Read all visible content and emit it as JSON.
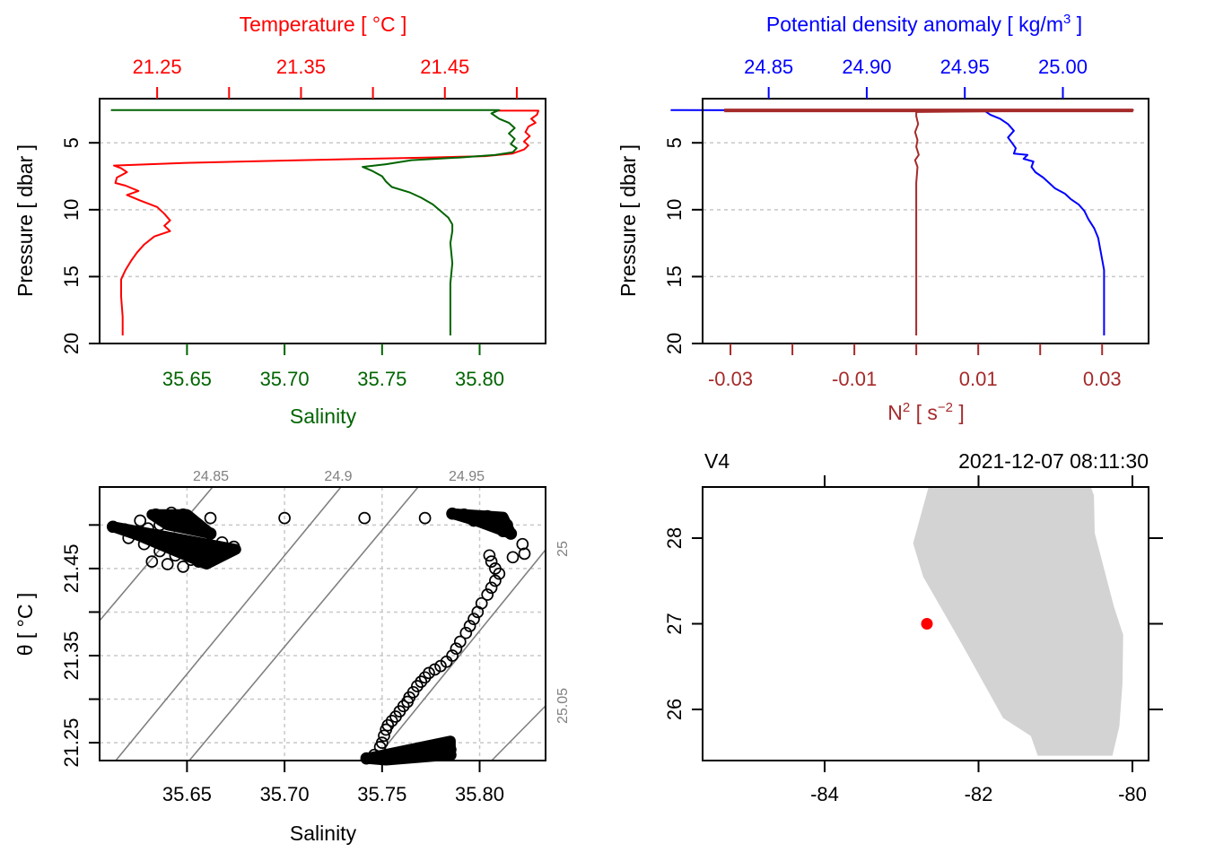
{
  "colors": {
    "temperature": "#ff0000",
    "salinity": "#006400",
    "density": "#0000ff",
    "n2": "#a52a2a",
    "grid": "#c8c8c8",
    "isopycnal": "#808080",
    "land": "#d3d3d3",
    "station": "#ff0000",
    "axis": "#000000"
  },
  "chart_data": [
    {
      "id": "temperature-salinity-profile",
      "type": "line",
      "ylabel": "Pressure [ dbar ]",
      "ylim": [
        20.0,
        1.7
      ],
      "y_ticks": [
        5,
        10,
        15,
        20
      ],
      "y_tick_labels": [
        "5",
        "10",
        "15",
        "20"
      ],
      "grid": "horizontal dotted at pressure ticks",
      "axes": {
        "top": {
          "title": "Temperature [ °C ]",
          "color": "#ff0000",
          "range": [
            21.21,
            21.52
          ],
          "ticks": [
            21.25,
            21.3,
            21.35,
            21.4,
            21.45,
            21.5
          ],
          "tick_labels": [
            "21.25",
            "",
            "21.35",
            "",
            "21.45",
            ""
          ]
        },
        "bottom": {
          "title": "Salinity",
          "color": "#006400",
          "range": [
            35.6052,
            35.8338
          ],
          "ticks": [
            35.65,
            35.7,
            35.75,
            35.8
          ],
          "tick_labels": [
            "35.65",
            "35.70",
            "35.75",
            "35.80"
          ]
        }
      },
      "series": [
        {
          "name": "Temperature",
          "axis": "top",
          "color": "#ff0000",
          "points": [
            [
              21.484,
              2.6
            ],
            [
              21.515,
              2.6
            ],
            [
              21.514,
              2.9
            ],
            [
              21.51,
              3.2
            ],
            [
              21.513,
              3.5
            ],
            [
              21.508,
              3.8
            ],
            [
              21.506,
              4.2
            ],
            [
              21.509,
              4.5
            ],
            [
              21.505,
              4.9
            ],
            [
              21.508,
              5.2
            ],
            [
              21.505,
              5.5
            ],
            [
              21.497,
              5.8
            ],
            [
              21.478,
              6.0
            ],
            [
              21.44,
              6.1
            ],
            [
              21.35,
              6.3
            ],
            [
              21.27,
              6.5
            ],
            [
              21.245,
              6.6
            ],
            [
              21.22,
              6.7
            ],
            [
              21.225,
              6.9
            ],
            [
              21.229,
              7.2
            ],
            [
              21.222,
              7.6
            ],
            [
              21.221,
              8.0
            ],
            [
              21.228,
              8.2
            ],
            [
              21.237,
              8.6
            ],
            [
              21.229,
              8.9
            ],
            [
              21.238,
              9.3
            ],
            [
              21.25,
              9.8
            ],
            [
              21.255,
              10.3
            ],
            [
              21.259,
              10.8
            ],
            [
              21.255,
              11.2
            ],
            [
              21.259,
              11.6
            ],
            [
              21.248,
              12.0
            ],
            [
              21.241,
              12.6
            ],
            [
              21.236,
              13.2
            ],
            [
              21.232,
              13.8
            ],
            [
              21.228,
              14.5
            ],
            [
              21.225,
              15.2
            ],
            [
              21.225,
              16.5
            ],
            [
              21.226,
              18.0
            ],
            [
              21.226,
              19.4
            ]
          ]
        },
        {
          "name": "Salinity",
          "axis": "bottom",
          "color": "#006400",
          "points": [
            [
              35.611,
              2.55
            ],
            [
              35.81,
              2.55
            ],
            [
              35.806,
              2.8
            ],
            [
              35.81,
              3.2
            ],
            [
              35.815,
              3.5
            ],
            [
              35.818,
              3.9
            ],
            [
              35.815,
              4.3
            ],
            [
              35.818,
              4.7
            ],
            [
              35.816,
              5.1
            ],
            [
              35.819,
              5.4
            ],
            [
              35.817,
              5.7
            ],
            [
              35.808,
              5.9
            ],
            [
              35.79,
              6.1
            ],
            [
              35.765,
              6.3
            ],
            [
              35.752,
              6.6
            ],
            [
              35.74,
              6.8
            ],
            [
              35.745,
              7.1
            ],
            [
              35.75,
              7.5
            ],
            [
              35.752,
              7.9
            ],
            [
              35.755,
              8.3
            ],
            [
              35.764,
              8.7
            ],
            [
              35.77,
              9.1
            ],
            [
              35.776,
              9.6
            ],
            [
              35.78,
              10.1
            ],
            [
              35.784,
              10.6
            ],
            [
              35.786,
              11.1
            ],
            [
              35.786,
              11.6
            ],
            [
              35.785,
              12.5
            ],
            [
              35.786,
              14.0
            ],
            [
              35.785,
              15.5
            ],
            [
              35.785,
              17.0
            ],
            [
              35.785,
              18.5
            ],
            [
              35.785,
              19.4
            ]
          ]
        }
      ]
    },
    {
      "id": "density-n2-profile",
      "type": "line",
      "ylabel": "Pressure [ dbar ]",
      "ylim": [
        20.0,
        1.7
      ],
      "y_ticks": [
        5,
        10,
        15,
        20
      ],
      "y_tick_labels": [
        "5",
        "10",
        "15",
        "20"
      ],
      "grid": "horizontal dotted at pressure ticks",
      "axes": {
        "top": {
          "title": "Potential density anomaly [ kg/m³ ]",
          "color": "#0000ff",
          "range": [
            24.7661,
            24.9939
          ],
          "display_range_note": "",
          "ticks": [
            24.85,
            24.9,
            24.95,
            25.0
          ],
          "tick_labels": [
            "24.85",
            "24.90",
            "24.95",
            "25.00"
          ]
        },
        "bottom": {
          "title": "N² [ s⁻² ]",
          "color": "#a52a2a",
          "range": [
            -0.0345,
            0.0375
          ],
          "ticks": [
            -0.03,
            -0.02,
            -0.01,
            0.0,
            0.01,
            0.02,
            0.03
          ],
          "tick_labels": [
            "-0.03",
            "",
            "-0.01",
            "",
            "0.01",
            "",
            "0.03"
          ]
        }
      },
      "series": [
        {
          "name": "Potential density anomaly",
          "axis": "top",
          "color": "#0000ff",
          "points": [
            [
              24.8,
              2.55
            ],
            [
              24.96,
              2.6
            ],
            [
              24.963,
              2.9
            ],
            [
              24.968,
              3.2
            ],
            [
              24.972,
              3.6
            ],
            [
              24.975,
              4.1
            ],
            [
              24.972,
              4.6
            ],
            [
              24.974,
              5.0
            ],
            [
              24.976,
              5.4
            ],
            [
              24.975,
              5.8
            ],
            [
              24.982,
              5.9
            ],
            [
              24.98,
              6.2
            ],
            [
              24.985,
              6.4
            ],
            [
              24.984,
              6.8
            ],
            [
              24.986,
              7.2
            ],
            [
              24.99,
              7.6
            ],
            [
              24.993,
              8.0
            ],
            [
              24.996,
              8.4
            ],
            [
              25.001,
              8.8
            ],
            [
              25.004,
              9.2
            ],
            [
              25.008,
              9.6
            ],
            [
              25.011,
              10.1
            ],
            [
              25.013,
              10.7
            ],
            [
              25.016,
              11.4
            ],
            [
              25.018,
              12.1
            ],
            [
              25.019,
              12.9
            ],
            [
              25.02,
              13.7
            ],
            [
              25.021,
              14.5
            ],
            [
              25.021,
              15.5
            ],
            [
              25.021,
              17.0
            ],
            [
              25.021,
              18.5
            ],
            [
              25.021,
              19.4
            ]
          ]
        },
        {
          "name": "N2",
          "axis": "bottom",
          "color": "#a52a2a",
          "points": [
            [
              -0.031,
              2.55
            ],
            [
              0.035,
              2.55
            ],
            [
              0.0,
              2.7
            ],
            [
              0.0,
              3.0
            ],
            [
              0.0003,
              3.6
            ],
            [
              -0.0002,
              4.2
            ],
            [
              0.0002,
              4.8
            ],
            [
              0.0,
              5.3
            ],
            [
              0.0004,
              5.9
            ],
            [
              -0.0002,
              6.3
            ],
            [
              0.0002,
              6.8
            ],
            [
              0.0,
              8.0
            ],
            [
              0.0,
              10.0
            ],
            [
              0.0,
              12.0
            ],
            [
              0.0,
              14.0
            ],
            [
              0.0,
              16.0
            ],
            [
              0.0,
              18.0
            ],
            [
              0.0,
              19.4
            ]
          ]
        }
      ]
    },
    {
      "id": "ts-diagram",
      "type": "scatter",
      "xlabel": "Salinity",
      "ylabel": "θ [ °C ]",
      "xlim": [
        35.6052,
        35.8338
      ],
      "ylim": [
        21.2295,
        21.5436
      ],
      "x_ticks": [
        35.65,
        35.7,
        35.75,
        35.8
      ],
      "x_tick_labels": [
        "35.65",
        "35.70",
        "35.75",
        "35.80"
      ],
      "y_ticks": [
        21.25,
        21.3,
        21.35,
        21.4,
        21.45,
        21.5
      ],
      "y_tick_labels": [
        "21.25",
        "",
        "21.35",
        "",
        "21.45",
        ""
      ],
      "grid": "dotted at ticks",
      "isopycnals": [
        {
          "label": "24.85",
          "label_side": "top"
        },
        {
          "label": "24.9",
          "label_side": "top"
        },
        {
          "label": "24.95",
          "label_side": "top"
        },
        {
          "label": "25",
          "label_side": "right"
        },
        {
          "label": "25.05",
          "label_side": "right"
        }
      ],
      "points": [
        [
          35.612,
          21.498
        ],
        [
          35.618,
          21.495
        ],
        [
          35.624,
          21.492
        ],
        [
          35.63,
          21.496
        ],
        [
          35.636,
          21.5
        ],
        [
          35.64,
          21.505
        ],
        [
          35.645,
          21.51
        ],
        [
          35.65,
          21.507
        ],
        [
          35.656,
          21.5
        ],
        [
          35.662,
          21.49
        ],
        [
          35.668,
          21.48
        ],
        [
          35.674,
          21.475
        ],
        [
          35.62,
          21.485
        ],
        [
          35.628,
          21.478
        ],
        [
          35.636,
          21.47
        ],
        [
          35.644,
          21.465
        ],
        [
          35.652,
          21.46
        ],
        [
          35.66,
          21.465
        ],
        [
          35.666,
          21.47
        ],
        [
          35.632,
          21.458
        ],
        [
          35.64,
          21.455
        ],
        [
          35.648,
          21.452
        ],
        [
          35.656,
          21.458
        ],
        [
          35.634,
          21.512
        ],
        [
          35.642,
          21.514
        ],
        [
          35.648,
          21.512
        ],
        [
          35.626,
          21.505
        ],
        [
          35.662,
          21.508
        ],
        [
          35.7,
          21.508
        ],
        [
          35.741,
          21.508
        ],
        [
          35.772,
          21.508
        ],
        [
          35.786,
          21.513
        ],
        [
          35.792,
          21.512
        ],
        [
          35.798,
          21.51
        ],
        [
          35.804,
          21.51
        ],
        [
          35.81,
          21.508
        ],
        [
          35.814,
          21.5
        ],
        [
          35.816,
          21.49
        ],
        [
          35.812,
          21.493
        ],
        [
          35.797,
          21.505
        ],
        [
          35.822,
          21.478
        ],
        [
          35.817,
          21.463
        ],
        [
          35.823,
          21.467
        ],
        [
          35.805,
          21.465
        ],
        [
          35.806,
          21.458
        ],
        [
          35.808,
          21.45
        ],
        [
          35.81,
          21.444
        ],
        [
          35.808,
          21.436
        ],
        [
          35.806,
          21.428
        ],
        [
          35.804,
          21.42
        ],
        [
          35.801,
          21.41
        ],
        [
          35.799,
          21.4
        ],
        [
          35.797,
          21.392
        ],
        [
          35.795,
          21.384
        ],
        [
          35.793,
          21.376
        ],
        [
          35.79,
          21.366
        ],
        [
          35.788,
          21.358
        ],
        [
          35.786,
          21.35
        ],
        [
          35.783,
          21.343
        ],
        [
          35.78,
          21.338
        ],
        [
          35.777,
          21.334
        ],
        [
          35.774,
          21.33
        ],
        [
          35.772,
          21.325
        ],
        [
          35.77,
          21.32
        ],
        [
          35.768,
          21.315
        ],
        [
          35.766,
          21.308
        ],
        [
          35.764,
          21.302
        ],
        [
          35.763,
          21.297
        ],
        [
          35.761,
          21.292
        ],
        [
          35.759,
          21.286
        ],
        [
          35.757,
          21.28
        ],
        [
          35.755,
          21.275
        ],
        [
          35.753,
          21.27
        ],
        [
          35.752,
          21.265
        ],
        [
          35.751,
          21.258
        ],
        [
          35.75,
          21.25
        ],
        [
          35.749,
          21.245
        ],
        [
          35.742,
          21.232
        ],
        [
          35.746,
          21.236
        ],
        [
          35.75,
          21.232
        ],
        [
          35.756,
          21.236
        ],
        [
          35.762,
          21.238
        ],
        [
          35.768,
          21.24
        ],
        [
          35.772,
          21.236
        ],
        [
          35.776,
          21.242
        ],
        [
          35.78,
          21.246
        ],
        [
          35.784,
          21.25
        ],
        [
          35.785,
          21.242
        ],
        [
          35.785,
          21.236
        ],
        [
          35.753,
          21.232
        ]
      ],
      "marker": "open circle"
    },
    {
      "id": "station-map",
      "type": "scatter",
      "title_left": "V4",
      "title_right": "2021-12-07 08:11:30",
      "xlim": [
        -85.58,
        -79.79
      ],
      "ylim": [
        25.46,
        28.6
      ],
      "x_ticks": [
        -84,
        -82,
        -80
      ],
      "x_tick_labels": [
        "-84",
        "-82",
        "-80"
      ],
      "y_ticks": [
        26,
        27,
        28
      ],
      "y_tick_labels": [
        "26",
        "27",
        "28"
      ],
      "station": {
        "lon": -82.67,
        "lat": 27.0,
        "color": "#ff0000"
      },
      "land_polygon": [
        [
          -82.65,
          28.6
        ],
        [
          -80.54,
          28.6
        ],
        [
          -80.5,
          28.5
        ],
        [
          -80.49,
          28.06
        ],
        [
          -80.24,
          27.2
        ],
        [
          -80.12,
          26.87
        ],
        [
          -80.13,
          26.3
        ],
        [
          -80.17,
          25.8
        ],
        [
          -80.26,
          25.46
        ],
        [
          -81.23,
          25.46
        ],
        [
          -81.32,
          25.69
        ],
        [
          -81.68,
          25.9
        ],
        [
          -82.22,
          26.77
        ],
        [
          -82.72,
          27.55
        ],
        [
          -82.85,
          27.94
        ]
      ]
    }
  ]
}
